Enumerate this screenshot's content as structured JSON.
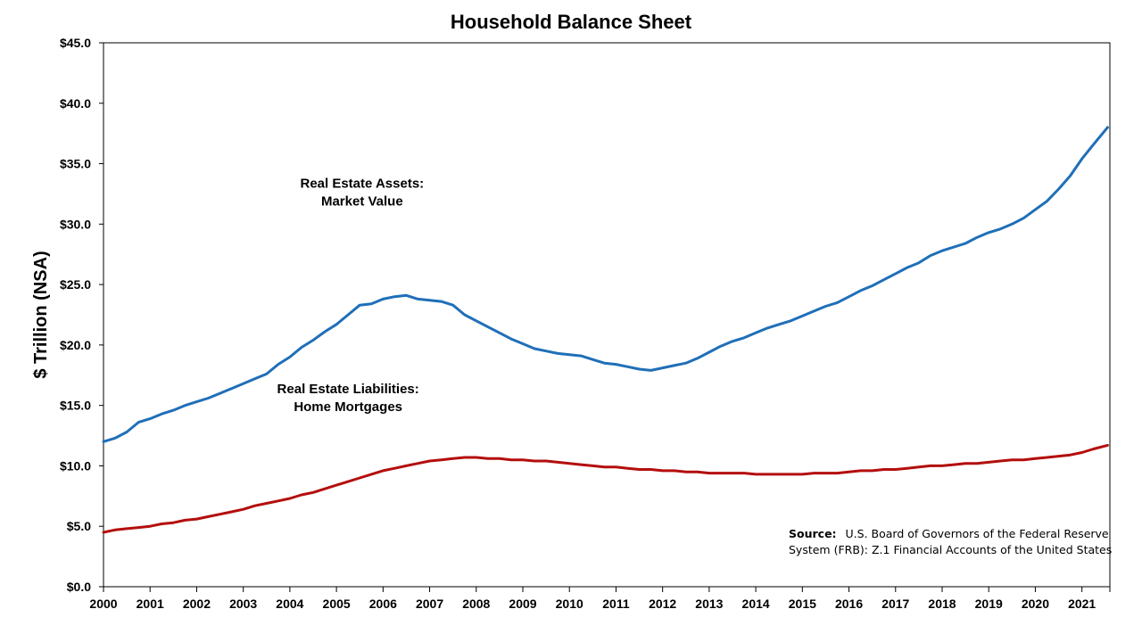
{
  "chart_data": {
    "type": "line",
    "title": "Household Balance Sheet",
    "ylabel": "$ Trillion (NSA)",
    "xlabel": "",
    "xlim": [
      2000,
      2021.6
    ],
    "ylim": [
      0,
      45
    ],
    "x_ticks": [
      "2000",
      "2001",
      "2002",
      "2003",
      "2004",
      "2005",
      "2006",
      "2007",
      "2008",
      "2009",
      "2010",
      "2011",
      "2012",
      "2013",
      "2014",
      "2015",
      "2016",
      "2017",
      "2018",
      "2019",
      "2020",
      "2021"
    ],
    "y_ticks": [
      "$0.0",
      "$5.0",
      "$10.0",
      "$15.0",
      "$20.0",
      "$25.0",
      "$30.0",
      "$35.0",
      "$40.0",
      "$45.0"
    ],
    "y_tick_values": [
      0,
      5,
      10,
      15,
      20,
      25,
      30,
      35,
      40,
      45
    ],
    "series": [
      {
        "name": "Real Estate Assets: Market Value",
        "color": "#1f6fb8",
        "x": [
          2000,
          2000.25,
          2000.5,
          2000.75,
          2001,
          2001.25,
          2001.5,
          2001.75,
          2002,
          2002.25,
          2002.5,
          2002.75,
          2003,
          2003.25,
          2003.5,
          2003.75,
          2004,
          2004.25,
          2004.5,
          2004.75,
          2005,
          2005.25,
          2005.5,
          2005.75,
          2006,
          2006.25,
          2006.5,
          2006.75,
          2007,
          2007.25,
          2007.5,
          2007.75,
          2008,
          2008.25,
          2008.5,
          2008.75,
          2009,
          2009.25,
          2009.5,
          2009.75,
          2010,
          2010.25,
          2010.5,
          2010.75,
          2011,
          2011.25,
          2011.5,
          2011.75,
          2012,
          2012.25,
          2012.5,
          2012.75,
          2013,
          2013.25,
          2013.5,
          2013.75,
          2014,
          2014.25,
          2014.5,
          2014.75,
          2015,
          2015.25,
          2015.5,
          2015.75,
          2016,
          2016.25,
          2016.5,
          2016.75,
          2017,
          2017.25,
          2017.5,
          2017.75,
          2018,
          2018.25,
          2018.5,
          2018.75,
          2019,
          2019.25,
          2019.5,
          2019.75,
          2020,
          2020.25,
          2020.5,
          2020.75,
          2021,
          2021.25,
          2021.55
        ],
        "values": [
          12.0,
          12.3,
          12.8,
          13.6,
          13.9,
          14.3,
          14.6,
          15.0,
          15.3,
          15.6,
          16.0,
          16.4,
          16.8,
          17.2,
          17.6,
          18.4,
          19.0,
          19.8,
          20.4,
          21.1,
          21.7,
          22.5,
          23.3,
          23.4,
          23.8,
          24.0,
          24.1,
          23.8,
          23.7,
          23.6,
          23.3,
          22.5,
          22.0,
          21.5,
          21.0,
          20.5,
          20.1,
          19.7,
          19.5,
          19.3,
          19.2,
          19.1,
          18.8,
          18.5,
          18.4,
          18.2,
          18.0,
          17.9,
          18.1,
          18.3,
          18.5,
          18.9,
          19.4,
          19.9,
          20.3,
          20.6,
          21.0,
          21.4,
          21.7,
          22.0,
          22.4,
          22.8,
          23.2,
          23.5,
          24.0,
          24.5,
          24.9,
          25.4,
          25.9,
          26.4,
          26.8,
          27.4,
          27.8,
          28.1,
          28.4,
          28.9,
          29.3,
          29.6,
          30.0,
          30.5,
          31.2,
          31.9,
          32.9,
          34.0,
          35.4,
          36.6,
          38.0
        ]
      },
      {
        "name": "Real Estate Liabilities: Home Mortgages",
        "color": "#b40e0e",
        "x": [
          2000,
          2000.25,
          2000.5,
          2000.75,
          2001,
          2001.25,
          2001.5,
          2001.75,
          2002,
          2002.25,
          2002.5,
          2002.75,
          2003,
          2003.25,
          2003.5,
          2003.75,
          2004,
          2004.25,
          2004.5,
          2004.75,
          2005,
          2005.25,
          2005.5,
          2005.75,
          2006,
          2006.25,
          2006.5,
          2006.75,
          2007,
          2007.25,
          2007.5,
          2007.75,
          2008,
          2008.25,
          2008.5,
          2008.75,
          2009,
          2009.25,
          2009.5,
          2009.75,
          2010,
          2010.25,
          2010.5,
          2010.75,
          2011,
          2011.25,
          2011.5,
          2011.75,
          2012,
          2012.25,
          2012.5,
          2012.75,
          2013,
          2013.25,
          2013.5,
          2013.75,
          2014,
          2014.25,
          2014.5,
          2014.75,
          2015,
          2015.25,
          2015.5,
          2015.75,
          2016,
          2016.25,
          2016.5,
          2016.75,
          2017,
          2017.25,
          2017.5,
          2017.75,
          2018,
          2018.25,
          2018.5,
          2018.75,
          2019,
          2019.25,
          2019.5,
          2019.75,
          2020,
          2020.25,
          2020.5,
          2020.75,
          2021,
          2021.25,
          2021.55
        ],
        "values": [
          4.5,
          4.7,
          4.8,
          4.9,
          5.0,
          5.2,
          5.3,
          5.5,
          5.6,
          5.8,
          6.0,
          6.2,
          6.4,
          6.7,
          6.9,
          7.1,
          7.3,
          7.6,
          7.8,
          8.1,
          8.4,
          8.7,
          9.0,
          9.3,
          9.6,
          9.8,
          10.0,
          10.2,
          10.4,
          10.5,
          10.6,
          10.7,
          10.7,
          10.6,
          10.6,
          10.5,
          10.5,
          10.4,
          10.4,
          10.3,
          10.2,
          10.1,
          10.0,
          9.9,
          9.9,
          9.8,
          9.7,
          9.7,
          9.6,
          9.6,
          9.5,
          9.5,
          9.4,
          9.4,
          9.4,
          9.4,
          9.3,
          9.3,
          9.3,
          9.3,
          9.3,
          9.4,
          9.4,
          9.4,
          9.5,
          9.6,
          9.6,
          9.7,
          9.7,
          9.8,
          9.9,
          10.0,
          10.0,
          10.1,
          10.2,
          10.2,
          10.3,
          10.4,
          10.5,
          10.5,
          10.6,
          10.7,
          10.8,
          10.9,
          11.1,
          11.4,
          11.7
        ]
      }
    ],
    "annotations": [
      {
        "lines": [
          "Real Estate Assets:",
          "Market Value"
        ],
        "x": 2005.55,
        "y": 33.0
      },
      {
        "lines": [
          "Real Estate Liabilities:",
          "Home Mortgages"
        ],
        "x": 2005.25,
        "y": 16.0
      }
    ],
    "source": {
      "label": "Source:",
      "line1": "U.S. Board of Governors of the Federal Reserve",
      "line2": "System (FRB): Z.1 Financial Accounts of the United States"
    },
    "grid": false,
    "legend": "none"
  }
}
